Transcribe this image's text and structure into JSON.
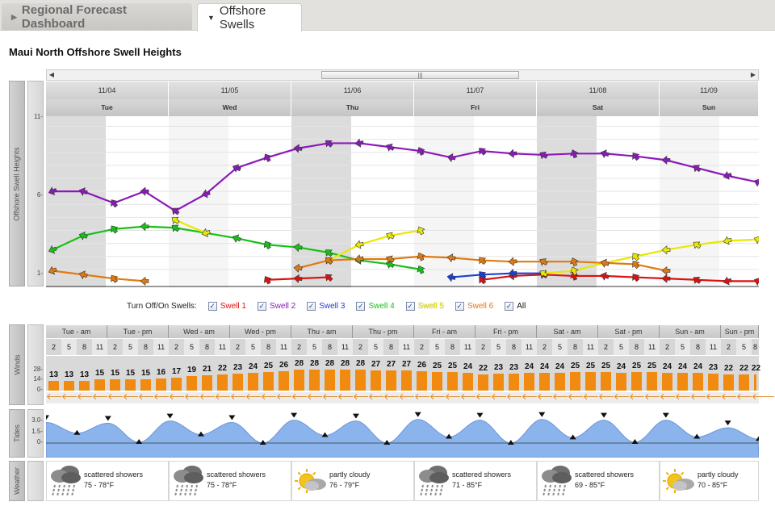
{
  "tabs": {
    "regional": "Regional Forecast Dashboard",
    "offshore": "Offshore Swells"
  },
  "page_title": "Maui North Offshore Swell Heights",
  "swell_chart": {
    "ylabel": "Offshore Swell Heights",
    "yticks": [
      "11-",
      "6-",
      "1-"
    ],
    "dates": [
      "11/04",
      "11/05",
      "11/06",
      "11/07",
      "11/08",
      "11/09"
    ],
    "days": [
      "Tue",
      "Wed",
      "Thu",
      "Fri",
      "Sat",
      "Sun"
    ],
    "scroll_grip": "|||"
  },
  "legend": {
    "label": "Turn Off/On Swells:",
    "items": [
      {
        "label": "Swell 1",
        "color": "#dd1111"
      },
      {
        "label": "Swell 2",
        "color": "#8a1ab8"
      },
      {
        "label": "Swell 3",
        "color": "#1f3fd0"
      },
      {
        "label": "Swell 4",
        "color": "#18c018"
      },
      {
        "label": "Swell 5",
        "color": "#e8e800"
      },
      {
        "label": "Swell 6",
        "color": "#e07a10"
      },
      {
        "label": "All",
        "color": "#111111"
      }
    ]
  },
  "chart_data": {
    "type": "line",
    "x": [
      "Tue 00",
      "Tue 06",
      "Tue 12",
      "Tue 18",
      "Wed 00",
      "Wed 06",
      "Wed 12",
      "Wed 18",
      "Thu 00",
      "Thu 06",
      "Thu 12",
      "Thu 18",
      "Fri 00",
      "Fri 06",
      "Fri 12",
      "Fri 18",
      "Sat 00",
      "Sat 06",
      "Sat 12",
      "Sat 18",
      "Sun 00",
      "Sun 06",
      "Sun 12",
      "Sun 18"
    ],
    "ylabel": "Offshore Swell Heights",
    "ylim": [
      0,
      12
    ],
    "series": [
      {
        "name": "Swell 1",
        "color": "#dd1111",
        "values": [
          null,
          null,
          null,
          null,
          null,
          null,
          null,
          0.2,
          0.3,
          0.4,
          null,
          null,
          null,
          null,
          0.2,
          0.5,
          0.6,
          0.5,
          0.5,
          0.4,
          0.3,
          0.2,
          0.1,
          0.1
        ]
      },
      {
        "name": "Swell 2",
        "color": "#8a1ab8",
        "values": [
          7.0,
          7.0,
          6.1,
          7.0,
          5.5,
          6.8,
          8.8,
          9.6,
          10.3,
          10.7,
          10.7,
          10.4,
          10.1,
          9.6,
          10.1,
          9.9,
          9.8,
          9.9,
          9.9,
          9.7,
          9.4,
          8.8,
          8.2,
          7.7
        ]
      },
      {
        "name": "Swell 3",
        "color": "#1f3fd0",
        "values": [
          null,
          null,
          null,
          null,
          null,
          null,
          null,
          null,
          null,
          null,
          null,
          null,
          null,
          0.4,
          0.6,
          0.7,
          0.7,
          null,
          null,
          null,
          null,
          null,
          null,
          null
        ]
      },
      {
        "name": "Swell 4",
        "color": "#18c018",
        "values": [
          2.5,
          3.6,
          4.1,
          4.3,
          4.2,
          3.8,
          3.4,
          2.9,
          2.7,
          2.3,
          1.7,
          1.4,
          1.0,
          null,
          null,
          null,
          null,
          null,
          null,
          null,
          null,
          null,
          null,
          null
        ]
      },
      {
        "name": "Swell 5",
        "color": "#e8e800",
        "values": [
          null,
          null,
          null,
          null,
          4.8,
          3.8,
          null,
          null,
          null,
          1.7,
          2.9,
          3.6,
          4.0,
          null,
          null,
          null,
          0.7,
          0.9,
          1.5,
          2.0,
          2.5,
          2.9,
          3.2,
          3.3
        ]
      },
      {
        "name": "Swell 6",
        "color": "#e07a10",
        "values": [
          0.9,
          0.6,
          0.3,
          0.1,
          null,
          null,
          null,
          null,
          1.1,
          1.7,
          1.8,
          1.8,
          2.0,
          1.9,
          1.7,
          1.6,
          1.6,
          1.6,
          1.5,
          1.4,
          0.9,
          null,
          null,
          null
        ]
      }
    ]
  },
  "winds": {
    "label": "Winds",
    "yticks": [
      "28-",
      "14-",
      "0-"
    ],
    "periods": [
      "Tue - am",
      "Tue - pm",
      "Wed - am",
      "Wed - pm",
      "Thu - am",
      "Thu - pm",
      "Fri - am",
      "Fri - pm",
      "Sat - am",
      "Sat - pm",
      "Sun - am",
      "Sun - pm"
    ],
    "hours": [
      "2",
      "5",
      "8",
      "11"
    ],
    "speeds": [
      13,
      13,
      13,
      15,
      15,
      15,
      15,
      16,
      17,
      19,
      21,
      22,
      23,
      24,
      25,
      26,
      28,
      28,
      28,
      28,
      28,
      27,
      27,
      27,
      26,
      25,
      25,
      24,
      22,
      23,
      23,
      24,
      24,
      24,
      25,
      25,
      25,
      24,
      25,
      25,
      24,
      24,
      24,
      23,
      22,
      22,
      22,
      22
    ],
    "arrow": "🡐"
  },
  "tides": {
    "label": "Tides",
    "yticks": [
      "3.0-",
      "1.5-",
      "0-"
    ],
    "levels": [
      2.7,
      1.3,
      2.6,
      0.1,
      2.9,
      1.1,
      2.7,
      0.0,
      3.0,
      1.0,
      2.9,
      0.0,
      3.1,
      0.8,
      3.0,
      0.0,
      3.1,
      0.7,
      3.0,
      0.1,
      3.0,
      0.8,
      2.0,
      0.5
    ]
  },
  "weather": {
    "label": "Weather",
    "days": [
      {
        "condition": "scattered showers",
        "temp": "75 - 78°F",
        "icon": "rain-cloud-icon"
      },
      {
        "condition": "scattered showers",
        "temp": "75 - 78°F",
        "icon": "rain-cloud-icon"
      },
      {
        "condition": "partly cloudy",
        "temp": "76 - 79°F",
        "icon": "partly-cloudy-icon"
      },
      {
        "condition": "scattered showers",
        "temp": "71 - 85°F",
        "icon": "rain-cloud-icon"
      },
      {
        "condition": "scattered showers",
        "temp": "69 - 85°F",
        "icon": "rain-cloud-icon"
      },
      {
        "condition": "partly cloudy",
        "temp": "70 - 85°F",
        "icon": "partly-cloudy-icon"
      }
    ]
  }
}
